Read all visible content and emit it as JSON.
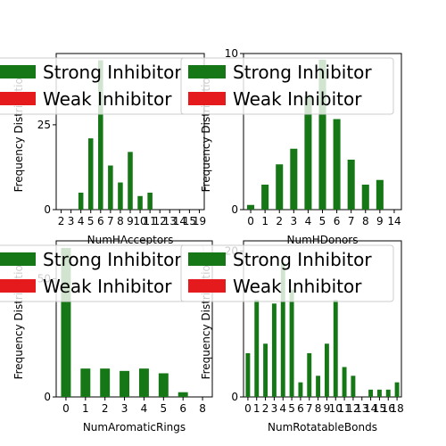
{
  "figure": {
    "background": "#ffffff",
    "strong_color": "#157715",
    "weak_color": "#e41a1c",
    "legend_bg": "#ffffff"
  },
  "chart_data": [
    {
      "type": "bar",
      "xlabel": "NumHAcceptors",
      "ylabel": "Frequency Distribution",
      "categories": [
        "2",
        "3",
        "4",
        "5",
        "6",
        "7",
        "8",
        "9",
        "10",
        "11",
        "12",
        "13",
        "14",
        "15",
        "19"
      ],
      "series": [
        {
          "name": "Strong Inhibitor",
          "values": [
            0,
            0,
            5,
            21,
            44,
            13,
            8,
            17,
            4,
            5,
            0,
            0,
            0,
            0,
            0
          ]
        },
        {
          "name": "Weak Inhibitor",
          "values": [
            0,
            0,
            0,
            0,
            0,
            0,
            0,
            0,
            0,
            0,
            0,
            0,
            0,
            0,
            0
          ]
        }
      ],
      "yticks": [
        0,
        25
      ],
      "ylim": [
        0,
        46
      ],
      "legend": "upper-left-overlapping"
    },
    {
      "type": "bar",
      "xlabel": "NumHDonors",
      "ylabel": "Frequency Distribution",
      "categories": [
        "0",
        "1",
        "2",
        "3",
        "4",
        "5",
        "6",
        "7",
        "8",
        "9",
        "14"
      ],
      "series": [
        {
          "name": "Strong Inhibitor",
          "values": [
            0.3,
            1.6,
            2.9,
            3.9,
            7.3,
            9.6,
            5.8,
            3.2,
            1.6,
            1.9,
            0
          ]
        },
        {
          "name": "Weak Inhibitor",
          "values": [
            0,
            0,
            0,
            0,
            0,
            0,
            0,
            0,
            0,
            0,
            0
          ]
        }
      ],
      "yticks": [
        0,
        10
      ],
      "ylim": [
        0,
        10
      ],
      "legend": "upper-left-overlapping"
    },
    {
      "type": "bar",
      "xlabel": "NumAromaticRings",
      "ylabel": "Frequency Distribution",
      "categories": [
        "0",
        "1",
        "2",
        "3",
        "4",
        "5",
        "6",
        "8"
      ],
      "series": [
        {
          "name": "Strong Inhibitor",
          "values": [
            63,
            12,
            12,
            11,
            12,
            10,
            2,
            0
          ]
        },
        {
          "name": "Weak Inhibitor",
          "values": [
            0,
            0,
            0,
            0,
            0,
            0,
            0,
            0
          ]
        }
      ],
      "yticks": [
        0,
        50
      ],
      "ylim": [
        0,
        66
      ],
      "legend": "upper-left-overlapping"
    },
    {
      "type": "bar",
      "xlabel": "NumRotatableBonds",
      "ylabel": "Frequency Distribution",
      "categories": [
        "0",
        "1",
        "2",
        "3",
        "4",
        "5",
        "6",
        "7",
        "8",
        "9",
        "10",
        "11",
        "12",
        "13",
        "14",
        "15",
        "16",
        "18"
      ],
      "series": [
        {
          "name": "Strong Inhibitor",
          "values": [
            6,
            13.3,
            7.3,
            12.8,
            18.4,
            14.7,
            2,
            6,
            2.9,
            7.3,
            13.3,
            4.1,
            2.9,
            0,
            1,
            1,
            1,
            2
          ]
        },
        {
          "name": "Weak Inhibitor",
          "values": [
            0,
            0,
            0,
            0,
            0,
            0,
            0,
            0,
            0,
            0,
            0,
            0,
            0,
            0,
            0,
            0,
            0,
            0
          ]
        }
      ],
      "yticks": [
        0,
        20
      ],
      "ylim": [
        0,
        21.4
      ],
      "legend": "upper-left-overlapping"
    }
  ]
}
